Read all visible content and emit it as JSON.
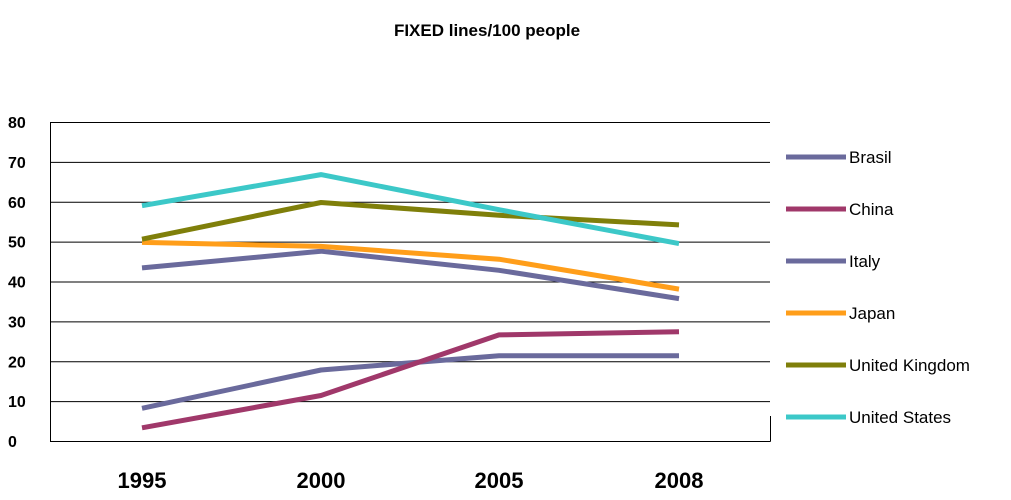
{
  "chart_data": {
    "type": "line",
    "title": "FIXED lines/100 people",
    "categories": [
      "1995",
      "2000",
      "2005",
      "2008"
    ],
    "ylim": [
      0,
      80
    ],
    "yticks": [
      0,
      10,
      20,
      30,
      40,
      50,
      60,
      70,
      80
    ],
    "grid": true,
    "legend_position": "right",
    "series": [
      {
        "name": "Brasil",
        "color": "#6A6A9C",
        "values": [
          8.2,
          17.8,
          21.4,
          21.4
        ]
      },
      {
        "name": "China",
        "color": "#A0386A",
        "values": [
          3.3,
          11.4,
          26.6,
          27.4
        ]
      },
      {
        "name": "Italy",
        "color": "#6A6A9C",
        "values": [
          43.4,
          47.6,
          42.8,
          35.7
        ]
      },
      {
        "name": "Japan",
        "color": "#FF9E1A",
        "values": [
          49.8,
          48.8,
          45.6,
          38.1
        ]
      },
      {
        "name": "United Kingdom",
        "color": "#7F7F0A",
        "values": [
          50.6,
          59.8,
          56.6,
          54.2
        ]
      },
      {
        "name": "United States",
        "color": "#3CC8C8",
        "values": [
          59.0,
          66.8,
          58.0,
          49.5
        ]
      }
    ]
  }
}
